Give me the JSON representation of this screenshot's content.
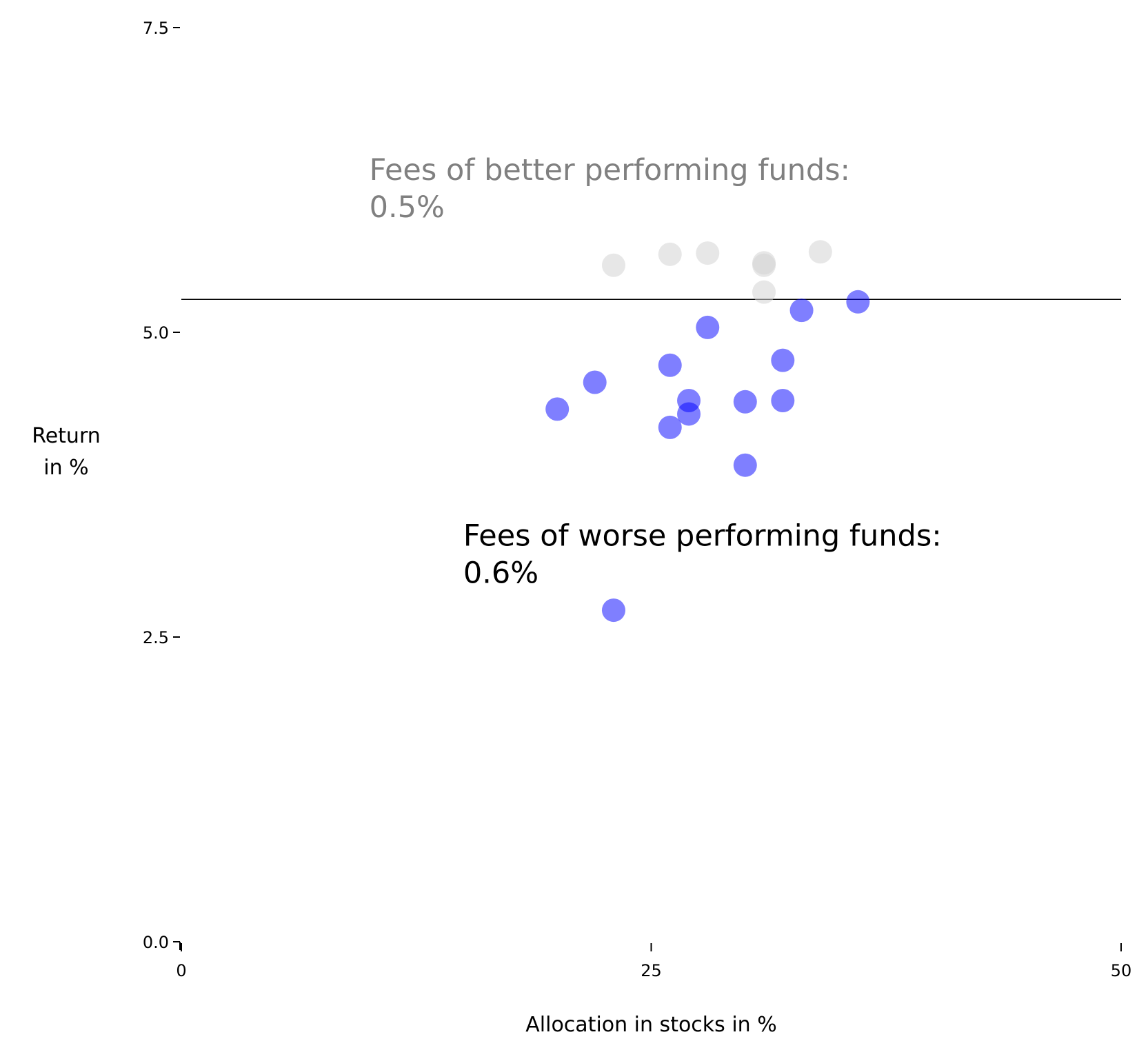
{
  "chart_data": {
    "type": "scatter",
    "xlabel": "Allocation in stocks in %",
    "ylabel": [
      "Return",
      "in %"
    ],
    "xlim": [
      0,
      50
    ],
    "ylim": [
      0,
      7.5
    ],
    "x_ticks": [
      0,
      25,
      50
    ],
    "x_tick_labels": [
      "0",
      "25",
      "50"
    ],
    "y_ticks": [
      0,
      2.5,
      5,
      7.5
    ],
    "y_tick_labels": [
      "0.0",
      "2.5",
      "5.0",
      "7.5"
    ],
    "grid": false,
    "reference_line": {
      "y": 5.27,
      "color": "#000000"
    },
    "series": [
      {
        "color": "#d3d3d3",
        "opacity": 0.55,
        "points": [
          {
            "x": 23,
            "y": 5.55
          },
          {
            "x": 26,
            "y": 5.64
          },
          {
            "x": 28,
            "y": 5.65
          },
          {
            "x": 31,
            "y": 5.55
          },
          {
            "x": 31,
            "y": 5.57
          },
          {
            "x": 31,
            "y": 5.33
          },
          {
            "x": 34,
            "y": 5.66
          }
        ]
      },
      {
        "color": "#0000ff",
        "opacity": 0.5,
        "points": [
          {
            "x": 36,
            "y": 5.25
          },
          {
            "x": 33,
            "y": 5.18
          },
          {
            "x": 28,
            "y": 5.04
          },
          {
            "x": 32,
            "y": 4.77
          },
          {
            "x": 26,
            "y": 4.73
          },
          {
            "x": 22,
            "y": 4.59
          },
          {
            "x": 27,
            "y": 4.44
          },
          {
            "x": 30,
            "y": 4.43
          },
          {
            "x": 32,
            "y": 4.44
          },
          {
            "x": 20,
            "y": 4.37
          },
          {
            "x": 27,
            "y": 4.33
          },
          {
            "x": 26,
            "y": 4.22
          },
          {
            "x": 30,
            "y": 3.91
          },
          {
            "x": 23,
            "y": 2.72
          }
        ]
      }
    ],
    "annotations": [
      {
        "lines": [
          "Fees of better performing funds:",
          "0.5%"
        ],
        "x": 10,
        "y": 6.25,
        "color": "#808080"
      },
      {
        "lines": [
          "Fees of worse performing funds:",
          "0.6%"
        ],
        "x": 15,
        "y": 3.25,
        "color": "#000000"
      }
    ]
  }
}
